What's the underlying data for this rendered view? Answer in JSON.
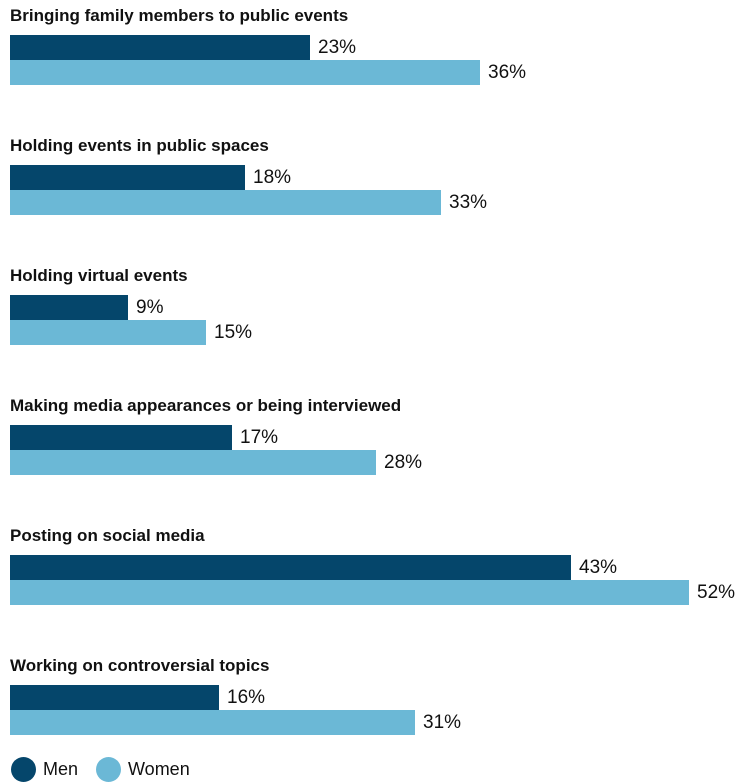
{
  "chart_data": {
    "type": "bar",
    "orientation": "horizontal",
    "categories": [
      "Bringing family members to public events",
      "Holding events in public spaces",
      "Holding virtual events",
      "Making media appearances or being interviewed",
      "Posting on social media",
      "Working on controversial topics"
    ],
    "series": [
      {
        "name": "Men",
        "color": "#05466b",
        "values": [
          23,
          18,
          9,
          17,
          43,
          16
        ]
      },
      {
        "name": "Women",
        "color": "#6bb8d6",
        "values": [
          36,
          33,
          15,
          28,
          52,
          31
        ]
      }
    ],
    "value_suffix": "%",
    "xlim": [
      0,
      52
    ],
    "grid": false,
    "legend_position": "bottom-left"
  }
}
